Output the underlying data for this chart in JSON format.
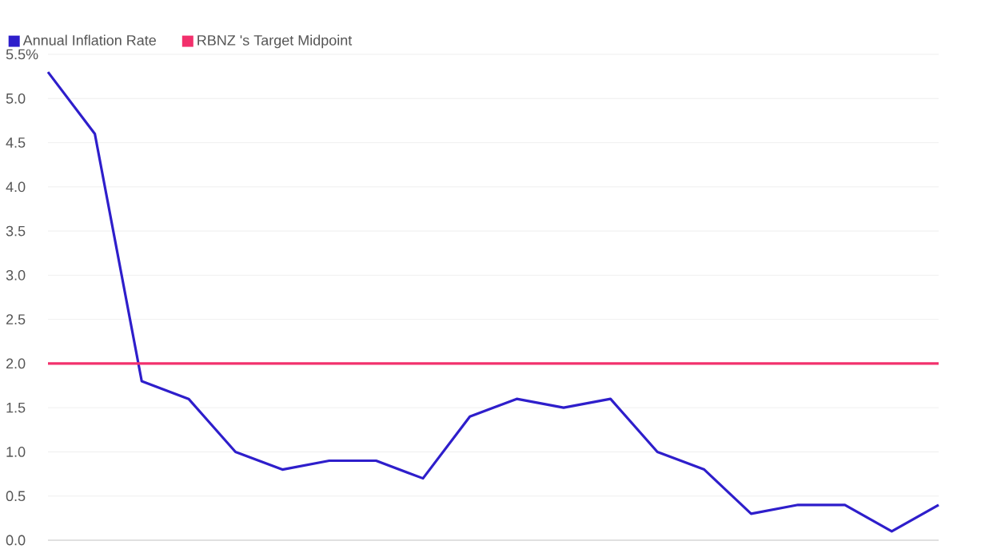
{
  "chart_data": {
    "type": "line",
    "categories": [
      null,
      null,
      null,
      null,
      null,
      null,
      null,
      null,
      null,
      null,
      null,
      null,
      null,
      null,
      null,
      null,
      null,
      null,
      null,
      null
    ],
    "series": [
      {
        "name": "Annual Inflation Rate",
        "color": "#2e1ecb",
        "values": [
          5.3,
          4.6,
          1.8,
          1.6,
          1.0,
          0.8,
          0.9,
          0.9,
          0.7,
          1.4,
          1.6,
          1.5,
          1.6,
          1.0,
          0.8,
          0.3,
          0.4,
          0.4,
          0.1,
          0.4
        ]
      }
    ],
    "ylim": [
      0,
      5.5
    ],
    "yticks": [
      {
        "value": 0,
        "label": "0.0"
      },
      0.5,
      {
        "value": 1,
        "label": "1.0"
      },
      1.5,
      {
        "value": 2,
        "label": "2.0"
      },
      2.5,
      {
        "value": 3,
        "label": "3.0"
      },
      3.5,
      {
        "value": 4,
        "label": "4.0"
      },
      4.5,
      {
        "value": 5,
        "label": "5.0"
      },
      {
        "value": 5.5,
        "label": "5.5%"
      }
    ],
    "ref_lines": [
      {
        "axis": "y",
        "value": 2,
        "label": "RBNZ 's Target Midpoint",
        "color": "#f2306c"
      }
    ],
    "grid": "y",
    "legend": "top left",
    "marker": "none",
    "line_style": "solid"
  }
}
